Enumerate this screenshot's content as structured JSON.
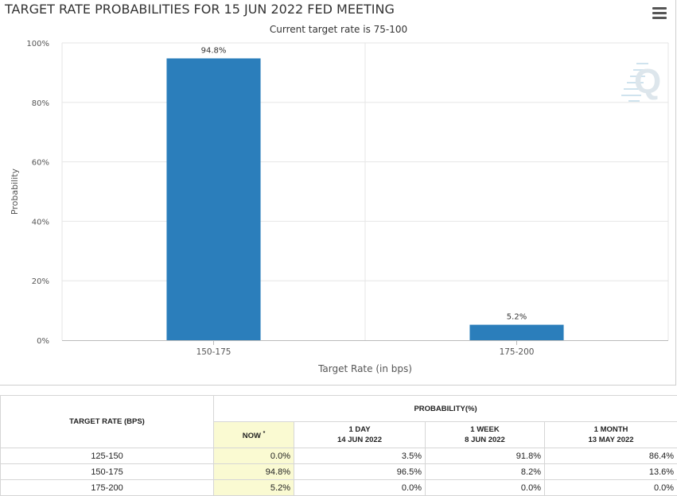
{
  "page": {
    "title": "TARGET RATE PROBABILITIES FOR 15 JUN 2022 FED MEETING",
    "subtitle": "Current target rate is 75-100"
  },
  "chart_data": {
    "type": "bar",
    "title": "TARGET RATE PROBABILITIES FOR 15 JUN 2022 FED MEETING",
    "subtitle": "Current target rate is 75-100",
    "categories": [
      "150-175",
      "175-200"
    ],
    "values": [
      94.8,
      5.2
    ],
    "data_labels": [
      "94.8%",
      "5.2%"
    ],
    "xlabel": "Target Rate (in bps)",
    "ylabel": "Probability",
    "ylim": [
      0,
      100
    ],
    "yticks": [
      0,
      20,
      40,
      60,
      80,
      100
    ],
    "ytick_labels": [
      "0%",
      "20%",
      "40%",
      "60%",
      "80%",
      "100%"
    ],
    "grid": true,
    "bar_color": "#2b7ebb",
    "watermark_letter": "Q"
  },
  "table": {
    "rate_header": "TARGET RATE (BPS)",
    "prob_header": "PROBABILITY(%)",
    "columns": [
      {
        "label": "NOW",
        "marker": "*",
        "date": ""
      },
      {
        "label": "1 DAY",
        "marker": "",
        "date": "14 JUN 2022"
      },
      {
        "label": "1 WEEK",
        "marker": "",
        "date": "8 JUN 2022"
      },
      {
        "label": "1 MONTH",
        "marker": "",
        "date": "13 MAY 2022"
      }
    ],
    "rows": [
      {
        "rate": "125-150",
        "values": [
          "0.0%",
          "3.5%",
          "91.8%",
          "86.4%"
        ]
      },
      {
        "rate": "150-175",
        "values": [
          "94.8%",
          "96.5%",
          "8.2%",
          "13.6%"
        ]
      },
      {
        "rate": "175-200",
        "values": [
          "5.2%",
          "0.0%",
          "0.0%",
          "0.0%"
        ]
      }
    ]
  }
}
